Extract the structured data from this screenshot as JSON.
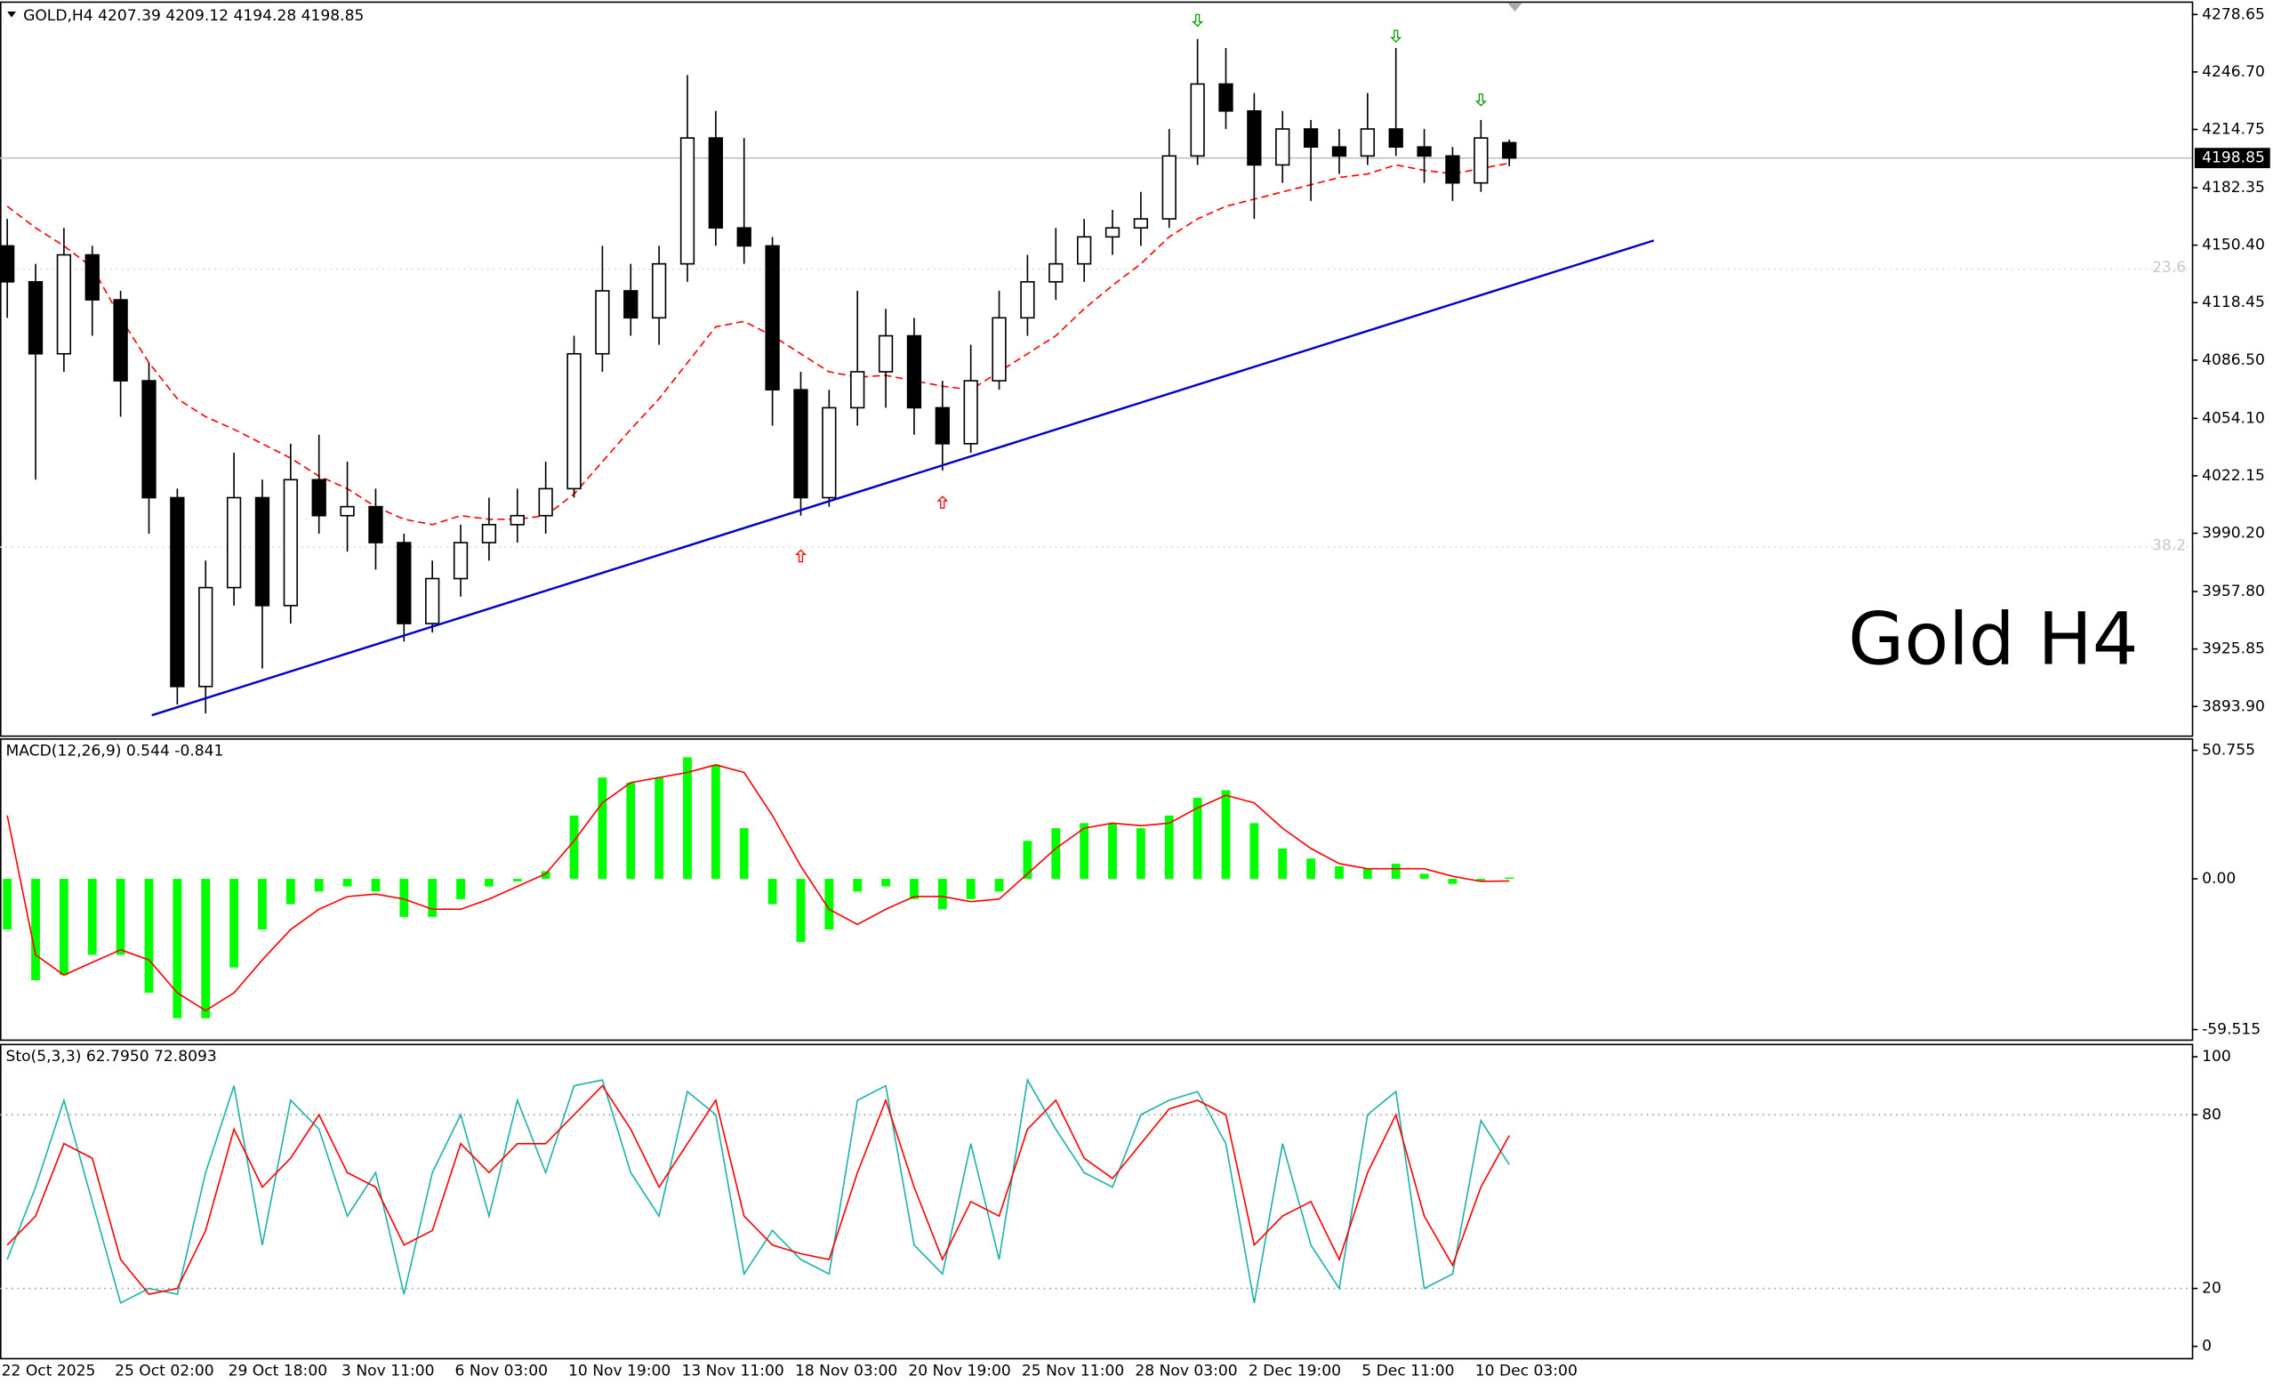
{
  "chart_data": [
    {
      "type": "candlestick",
      "title": "GOLD,H4  4207.39 4209.12 4194.28 4198.85",
      "annotation": "Gold H4",
      "x": [
        "22 Oct 2025",
        null,
        null,
        null,
        "25 Oct 02:00",
        null,
        null,
        null,
        "29 Oct 18:00",
        null,
        null,
        null,
        "3 Nov 11:00",
        null,
        null,
        null,
        "6 Nov 03:00",
        null,
        null,
        null,
        "10 Nov 19:00",
        null,
        null,
        null,
        "13 Nov 11:00",
        null,
        null,
        null,
        "18 Nov 03:00",
        null,
        null,
        null,
        "20 Nov 19:00",
        null,
        null,
        null,
        "25 Nov 11:00",
        null,
        null,
        null,
        "28 Nov 03:00",
        null,
        null,
        null,
        "2 Dec 19:00",
        null,
        null,
        null,
        "5 Dec 11:00",
        null,
        null,
        null,
        "10 Dec 03:00",
        null
      ],
      "open": [
        4150,
        4130,
        4090,
        4145,
        4120,
        4075,
        4010,
        3905,
        3960,
        4010,
        3950,
        4020,
        4000,
        4005,
        3985,
        3940,
        3965,
        3985,
        3995,
        4000,
        4015,
        4090,
        4125,
        4110,
        4140,
        4210,
        4160,
        4150,
        4070,
        4010,
        4060,
        4080,
        4100,
        4060,
        4040,
        4075,
        4110,
        4130,
        4140,
        4155,
        4160,
        4165,
        4200,
        4240,
        4225,
        4195,
        4215,
        4205,
        4200,
        4215,
        4205,
        4200,
        4185,
        4207.39
      ],
      "high": [
        4165,
        4140,
        4160,
        4150,
        4125,
        4085,
        4015,
        3975,
        4035,
        4020,
        4040,
        4045,
        4030,
        4015,
        3990,
        3975,
        3995,
        4010,
        4015,
        4030,
        4100,
        4150,
        4140,
        4150,
        4245,
        4225,
        4210,
        4155,
        4080,
        4070,
        4125,
        4115,
        4110,
        4075,
        4095,
        4125,
        4145,
        4160,
        4165,
        4170,
        4180,
        4215,
        4265,
        4260,
        4235,
        4225,
        4220,
        4215,
        4235,
        4260,
        4215,
        4205,
        4220,
        4209.12
      ],
      "low": [
        4110,
        4020,
        4080,
        4100,
        4055,
        3990,
        3895,
        3890,
        3950,
        3915,
        3940,
        3990,
        3980,
        3970,
        3930,
        3935,
        3955,
        3975,
        3985,
        3990,
        4010,
        4080,
        4100,
        4095,
        4130,
        4150,
        4140,
        4050,
        4000,
        4005,
        4050,
        4060,
        4045,
        4025,
        4035,
        4070,
        4100,
        4120,
        4130,
        4145,
        4150,
        4160,
        4195,
        4215,
        4165,
        4185,
        4175,
        4190,
        4195,
        4200,
        4185,
        4175,
        4180,
        4194.28
      ],
      "close": [
        4130,
        4090,
        4145,
        4120,
        4075,
        4010,
        3905,
        3960,
        4010,
        3950,
        4020,
        4000,
        4005,
        3985,
        3940,
        3965,
        3985,
        3995,
        4000,
        4015,
        4090,
        4125,
        4110,
        4140,
        4210,
        4160,
        4150,
        4070,
        4010,
        4060,
        4080,
        4100,
        4060,
        4040,
        4075,
        4110,
        4130,
        4140,
        4155,
        4160,
        4165,
        4200,
        4240,
        4225,
        4195,
        4215,
        4205,
        4200,
        4215,
        4205,
        4200,
        4185,
        4210,
        4198.85
      ],
      "up_color": "#ffffff",
      "down_color": "#000000",
      "ylim": [
        3877.8,
        4285.1
      ],
      "yticks": [
        4278.65,
        {
          "value": 4246.7,
          "label": "4246.70"
        },
        4214.75,
        4182.35,
        {
          "value": 4150.4,
          "label": "4150.40"
        },
        4118.45,
        {
          "value": 4086.5,
          "label": "4086.50"
        },
        {
          "value": 4054.1,
          "label": "4054.10"
        },
        4022.15,
        {
          "value": 3990.2,
          "label": "3990.20"
        },
        {
          "value": 3957.8,
          "label": "3957.80"
        },
        3925.85,
        {
          "value": 3893.9,
          "label": "3893.90"
        }
      ],
      "moving_average": {
        "color": "#ff0000",
        "values": [
          4172,
          4160,
          4150,
          4138,
          4110,
          4085,
          4065,
          4055,
          4048,
          4040,
          4032,
          4022,
          4015,
          4005,
          3998,
          3995,
          4000,
          3998,
          3998,
          4000,
          4012,
          4030,
          4048,
          4065,
          4085,
          4105,
          4108,
          4100,
          4090,
          4080,
          4077,
          4078,
          4075,
          4072,
          4070,
          4080,
          4090,
          4100,
          4115,
          4128,
          4140,
          4155,
          4165,
          4172,
          4176,
          4180,
          4184,
          4188,
          4190,
          4195,
          4192,
          4190,
          4193,
          4196
        ]
      },
      "trendline": {
        "color": "#0000cd",
        "x": [
          5.1,
          58.1
        ],
        "values": [
          3889,
          4153
        ]
      },
      "levels": [
        {
          "label": "23.6",
          "value": 4137
        },
        {
          "label": "38.2",
          "value": 3982.5
        }
      ],
      "fractals_up": {
        "color": "#ff0000",
        "x": [
          28,
          33
        ],
        "values": [
          3977.6,
          4007.4
        ]
      },
      "fractals_down": {
        "color": "#00a000",
        "x": [
          42,
          49,
          52
        ],
        "values": [
          4275.4,
          4266.6,
          4231.2
        ]
      }
    },
    {
      "type": "macd",
      "title": "MACD(12,26,9) 0.544 -0.841",
      "histogram": {
        "color": "#00ff00",
        "values": [
          -20,
          -40,
          -38,
          -30,
          -30,
          -45,
          -55,
          -55,
          -35,
          -20,
          -10,
          -5,
          -3,
          -5,
          -15,
          -15,
          -8,
          -3,
          -1,
          3,
          25,
          40,
          38,
          40,
          48,
          45,
          20,
          -10,
          -25,
          -20,
          -5,
          -3,
          -8,
          -12,
          -8,
          -5,
          15,
          20,
          22,
          22,
          20,
          25,
          32,
          35,
          22,
          12,
          8,
          5,
          4,
          6,
          2,
          -2,
          -1,
          0.544
        ]
      },
      "signal": {
        "color": "#ff0000",
        "values": [
          25,
          -30,
          -38,
          -33,
          -28,
          -32,
          -45,
          -52,
          -45,
          -32,
          -20,
          -12,
          -7,
          -6,
          -8,
          -12,
          -12,
          -8,
          -3,
          2,
          15,
          30,
          38,
          40,
          42,
          45,
          42,
          25,
          5,
          -12,
          -18,
          -12,
          -7,
          -7,
          -9,
          -8,
          2,
          12,
          20,
          22,
          21,
          22,
          28,
          33,
          30,
          20,
          12,
          6,
          4,
          4,
          4,
          1,
          -1,
          -0.841
        ]
      },
      "ylim": [
        -63.4,
        54.9
      ],
      "yticks": [
        50.755,
        {
          "value": 0,
          "label": "0.00"
        },
        -59.515
      ]
    },
    {
      "type": "stochastic",
      "title": "Sto(5,3,3) 62.7950 72.8093",
      "main": {
        "color": "#20b2aa",
        "values": [
          30,
          55,
          85,
          50,
          15,
          20,
          18,
          60,
          90,
          35,
          85,
          75,
          45,
          60,
          18,
          60,
          80,
          45,
          85,
          60,
          90,
          92,
          60,
          45,
          88,
          80,
          25,
          40,
          30,
          25,
          85,
          90,
          35,
          25,
          70,
          30,
          92,
          75,
          60,
          55,
          80,
          85,
          88,
          70,
          15,
          70,
          35,
          20,
          80,
          88,
          20,
          25,
          78,
          62.795
        ]
      },
      "signal": {
        "color": "#ff0000",
        "values": [
          35,
          45,
          70,
          65,
          30,
          18,
          20,
          40,
          75,
          55,
          65,
          80,
          60,
          55,
          35,
          40,
          70,
          60,
          70,
          70,
          80,
          90,
          75,
          55,
          70,
          85,
          45,
          35,
          32,
          30,
          60,
          85,
          55,
          30,
          50,
          45,
          75,
          85,
          65,
          58,
          70,
          82,
          85,
          80,
          35,
          45,
          50,
          30,
          60,
          80,
          45,
          28,
          55,
          72.8093
        ]
      },
      "ylim": [
        -4,
        104
      ],
      "yticks": [
        0,
        20,
        80,
        100
      ],
      "levels": [
        20,
        80
      ]
    }
  ]
}
